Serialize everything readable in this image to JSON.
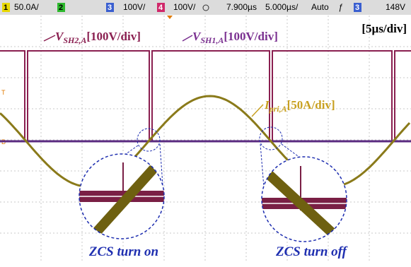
{
  "status_bar": {
    "ch1_number": "1",
    "ch1_scale": "50.0A/",
    "ch2_number": "2",
    "ch3_number": "3",
    "ch3_scale": "100V/",
    "ch4_number": "4",
    "ch4_scale": "100V/",
    "delay": "7.900µs",
    "timebase": "5.000µs/",
    "mode": "Auto",
    "trigger_symbol": "ƒ",
    "trigger_channel": "3",
    "trigger_level": "148V"
  },
  "markers": {
    "trigger": "T",
    "baseline": "B"
  },
  "annotations": {
    "vsh2": {
      "symbol": "V",
      "subscript": "SH2,A",
      "scale": "[100V/div]"
    },
    "vsh1": {
      "symbol": "V",
      "subscript": "SH1,A",
      "scale": "[100V/div]"
    },
    "ipri": {
      "symbol": "I",
      "subscript": "pri,A",
      "scale": "[50A/div]"
    },
    "timebase": "[5µs/div]",
    "zcs_on": "ZCS turn on",
    "zcs_off": "ZCS turn off"
  }
}
